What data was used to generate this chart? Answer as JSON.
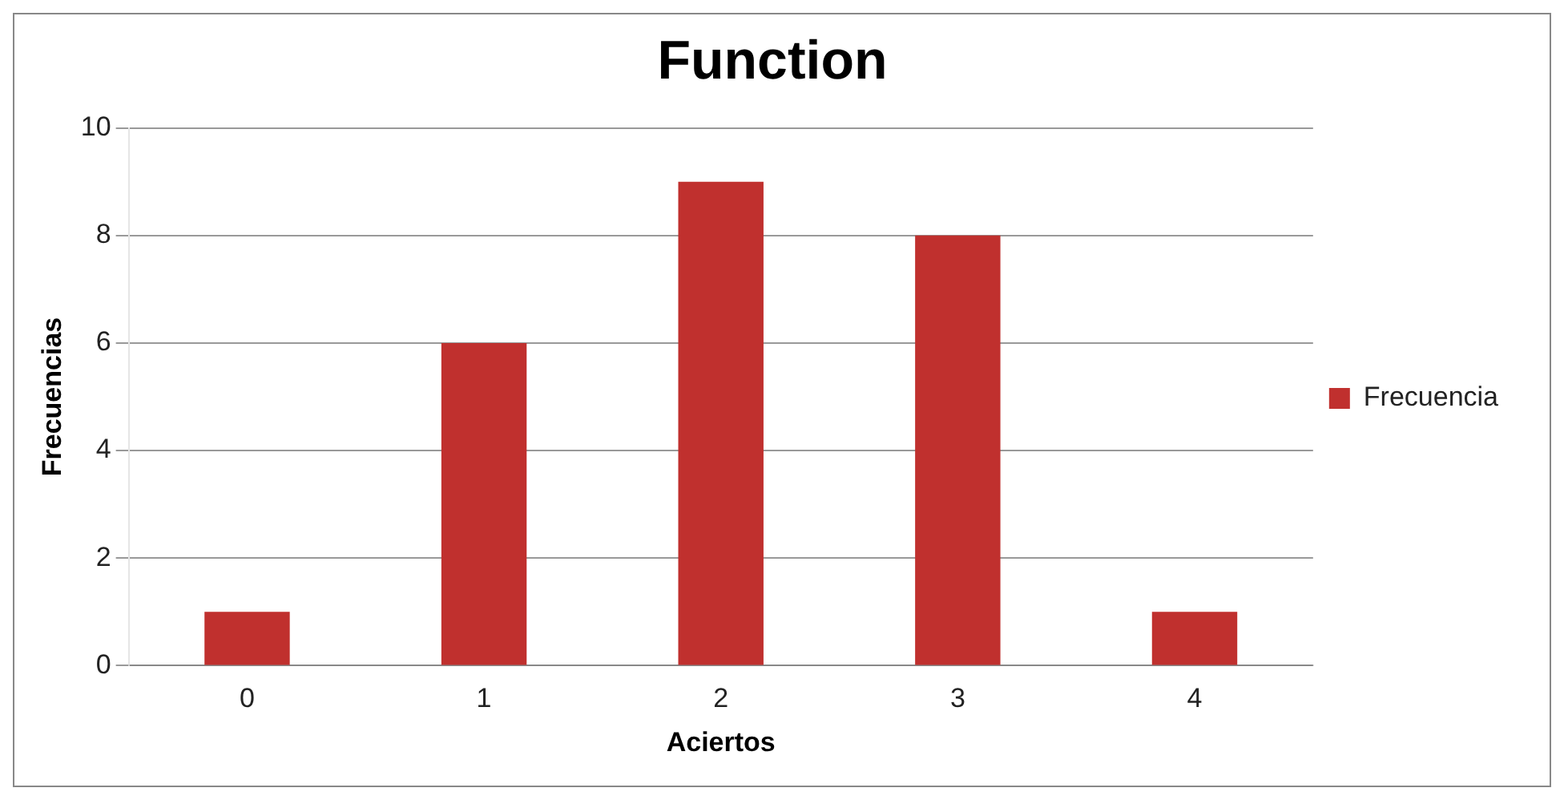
{
  "chart_data": {
    "type": "bar",
    "title": "Function",
    "xlabel": "Aciertos",
    "ylabel": "Frecuencias",
    "categories": [
      "0",
      "1",
      "2",
      "3",
      "4"
    ],
    "series": [
      {
        "name": "Frecuencia",
        "color": "#c0302e",
        "values": [
          1,
          6,
          9,
          8,
          1
        ]
      }
    ],
    "ylim": [
      0,
      10
    ],
    "yticks": [
      0,
      2,
      4,
      6,
      8,
      10
    ],
    "grid": "y",
    "legend": "right"
  }
}
